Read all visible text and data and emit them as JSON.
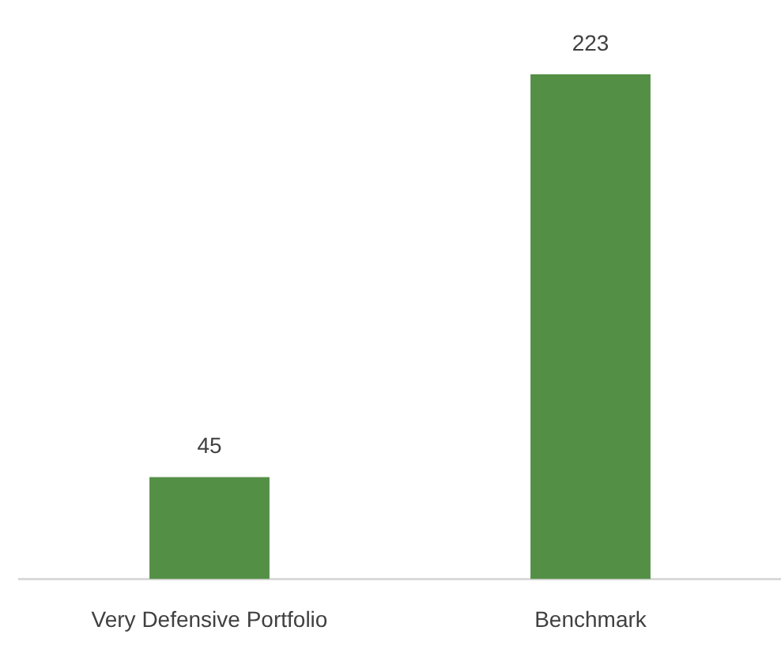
{
  "chart_data": {
    "type": "bar",
    "categories": [
      "Very Defensive Portfolio",
      "Benchmark"
    ],
    "values": [
      45,
      223
    ],
    "color": "#548f46",
    "data_labels": true,
    "grid": false,
    "legend": false
  }
}
